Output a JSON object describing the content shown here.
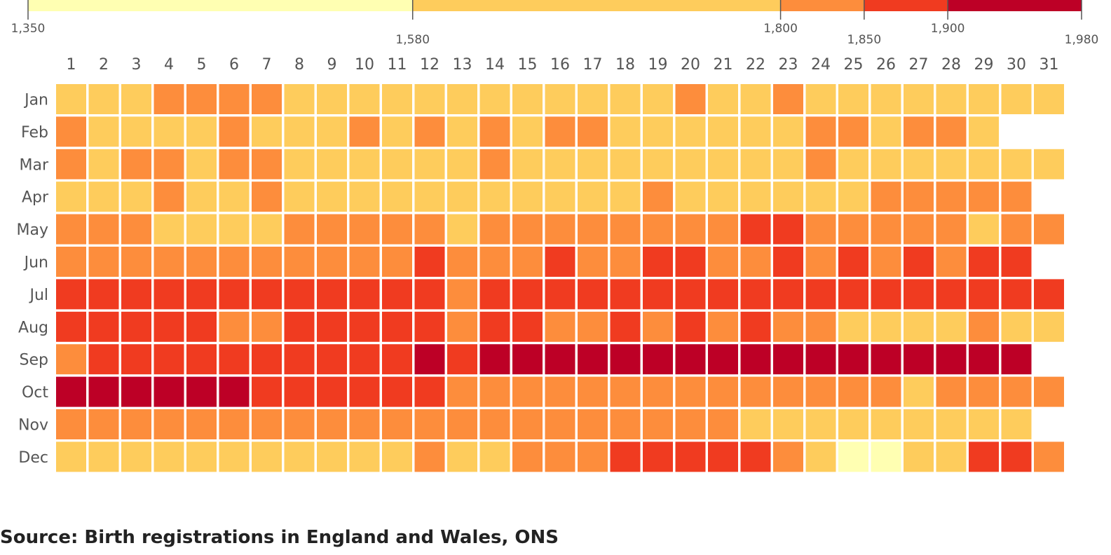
{
  "chart_data": {
    "type": "heatmap",
    "title": "",
    "xlabel": "",
    "ylabel": "",
    "x_categories": [
      "1",
      "2",
      "3",
      "4",
      "5",
      "6",
      "7",
      "8",
      "9",
      "10",
      "11",
      "12",
      "13",
      "14",
      "15",
      "16",
      "17",
      "18",
      "19",
      "20",
      "21",
      "22",
      "23",
      "24",
      "25",
      "26",
      "27",
      "28",
      "29",
      "30",
      "31"
    ],
    "y_categories": [
      "Jan",
      "Feb",
      "Mar",
      "Apr",
      "May",
      "Jun",
      "Jul",
      "Aug",
      "Sep",
      "Oct",
      "Nov",
      "Dec"
    ],
    "color_scale": {
      "min": 1350,
      "max": 1980,
      "tick_labels": [
        "1,350",
        "1,580",
        "1,800",
        "1,850",
        "1,900",
        "1,980"
      ],
      "bins": [
        {
          "from": 1350,
          "to": 1580,
          "color": "#ffffb2"
        },
        {
          "from": 1580,
          "to": 1800,
          "color": "#fecc5c"
        },
        {
          "from": 1800,
          "to": 1850,
          "color": "#fd8d3c"
        },
        {
          "from": 1850,
          "to": 1900,
          "color": "#f03b20"
        },
        {
          "from": 1900,
          "to": 1980,
          "color": "#bd0026"
        }
      ]
    },
    "value_note": "cell bin index 0-4 per color_scale.bins",
    "bins_by_month": [
      [
        1,
        1,
        1,
        2,
        2,
        2,
        2,
        1,
        1,
        1,
        1,
        1,
        1,
        1,
        1,
        1,
        1,
        1,
        1,
        2,
        1,
        1,
        2,
        1,
        1,
        1,
        1,
        1,
        1,
        1,
        1
      ],
      [
        2,
        1,
        1,
        1,
        1,
        2,
        1,
        1,
        1,
        2,
        1,
        2,
        1,
        2,
        1,
        2,
        2,
        1,
        1,
        1,
        1,
        1,
        1,
        2,
        2,
        1,
        2,
        2,
        1
      ],
      [
        2,
        1,
        2,
        2,
        1,
        2,
        2,
        1,
        1,
        1,
        1,
        1,
        1,
        2,
        1,
        1,
        1,
        1,
        1,
        1,
        1,
        1,
        1,
        2,
        1,
        1,
        1,
        1,
        1,
        1,
        1
      ],
      [
        1,
        1,
        1,
        2,
        1,
        1,
        2,
        1,
        1,
        1,
        1,
        1,
        1,
        1,
        1,
        1,
        1,
        1,
        2,
        1,
        1,
        1,
        1,
        1,
        1,
        2,
        2,
        2,
        2,
        2
      ],
      [
        2,
        2,
        2,
        1,
        1,
        1,
        1,
        2,
        2,
        2,
        2,
        2,
        1,
        2,
        2,
        2,
        2,
        2,
        2,
        2,
        2,
        3,
        3,
        2,
        2,
        2,
        2,
        2,
        1,
        2,
        2
      ],
      [
        2,
        2,
        2,
        2,
        2,
        2,
        2,
        2,
        2,
        2,
        2,
        3,
        2,
        2,
        2,
        3,
        2,
        2,
        3,
        3,
        2,
        2,
        3,
        2,
        3,
        2,
        3,
        2,
        3,
        3
      ],
      [
        3,
        3,
        3,
        3,
        3,
        3,
        3,
        3,
        3,
        3,
        3,
        3,
        2,
        3,
        3,
        3,
        3,
        3,
        3,
        3,
        3,
        3,
        3,
        3,
        3,
        3,
        3,
        3,
        3,
        3,
        3
      ],
      [
        3,
        3,
        3,
        3,
        3,
        2,
        2,
        3,
        3,
        3,
        3,
        3,
        2,
        3,
        3,
        2,
        2,
        3,
        2,
        3,
        2,
        3,
        2,
        2,
        1,
        1,
        1,
        1,
        2,
        1,
        1
      ],
      [
        2,
        3,
        3,
        3,
        3,
        3,
        3,
        3,
        3,
        3,
        3,
        4,
        3,
        4,
        4,
        4,
        4,
        4,
        4,
        4,
        4,
        4,
        4,
        4,
        4,
        4,
        4,
        4,
        4,
        4
      ],
      [
        4,
        4,
        4,
        4,
        4,
        4,
        3,
        3,
        3,
        3,
        3,
        3,
        2,
        2,
        2,
        2,
        2,
        2,
        2,
        2,
        2,
        2,
        2,
        2,
        2,
        2,
        1,
        2,
        2,
        2,
        2
      ],
      [
        2,
        2,
        2,
        2,
        2,
        2,
        2,
        2,
        2,
        2,
        2,
        2,
        2,
        2,
        2,
        2,
        2,
        2,
        2,
        2,
        2,
        1,
        1,
        1,
        1,
        1,
        1,
        1,
        1,
        1
      ],
      [
        1,
        1,
        1,
        1,
        1,
        1,
        1,
        1,
        1,
        1,
        1,
        2,
        1,
        1,
        2,
        2,
        2,
        3,
        3,
        3,
        3,
        3,
        2,
        1,
        0,
        0,
        1,
        1,
        3,
        3,
        2
      ]
    ]
  },
  "source_text": "Source: Birth registrations in England and Wales, ONS"
}
